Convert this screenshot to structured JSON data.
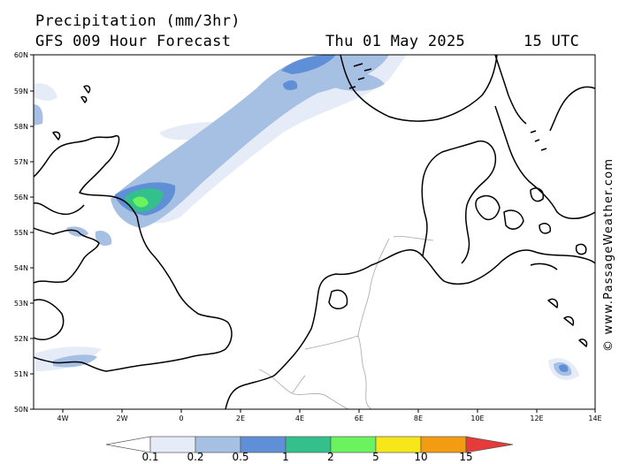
{
  "title": "Precipitation (mm/3hr)",
  "forecast": "GFS 009 Hour Forecast",
  "valid_date": "Thu 01 May 2025",
  "valid_time": "15 UTC",
  "credit": "© www.PassageWeather.com",
  "map": {
    "lon_min": -5,
    "lon_max": 14,
    "lat_min": 50,
    "lat_max": 60,
    "lat_labels": [
      "50N",
      "51N",
      "52N",
      "53N",
      "54N",
      "55N",
      "56N",
      "57N",
      "58N",
      "59N",
      "60N"
    ],
    "lon_labels": [
      "4W",
      "2W",
      "0",
      "2E",
      "4E",
      "6E",
      "8E",
      "10E",
      "12E",
      "14E"
    ]
  },
  "scale": {
    "labels": [
      "0.1",
      "0.2",
      "0.5",
      "1",
      "2",
      "5",
      "10",
      "15"
    ],
    "colors": [
      "#ffffff",
      "#e6ecf7",
      "#a6c0e3",
      "#5f8fd6",
      "#34c08c",
      "#6bf25f",
      "#f6e61a",
      "#f39c12",
      "#e63b3b"
    ]
  }
}
